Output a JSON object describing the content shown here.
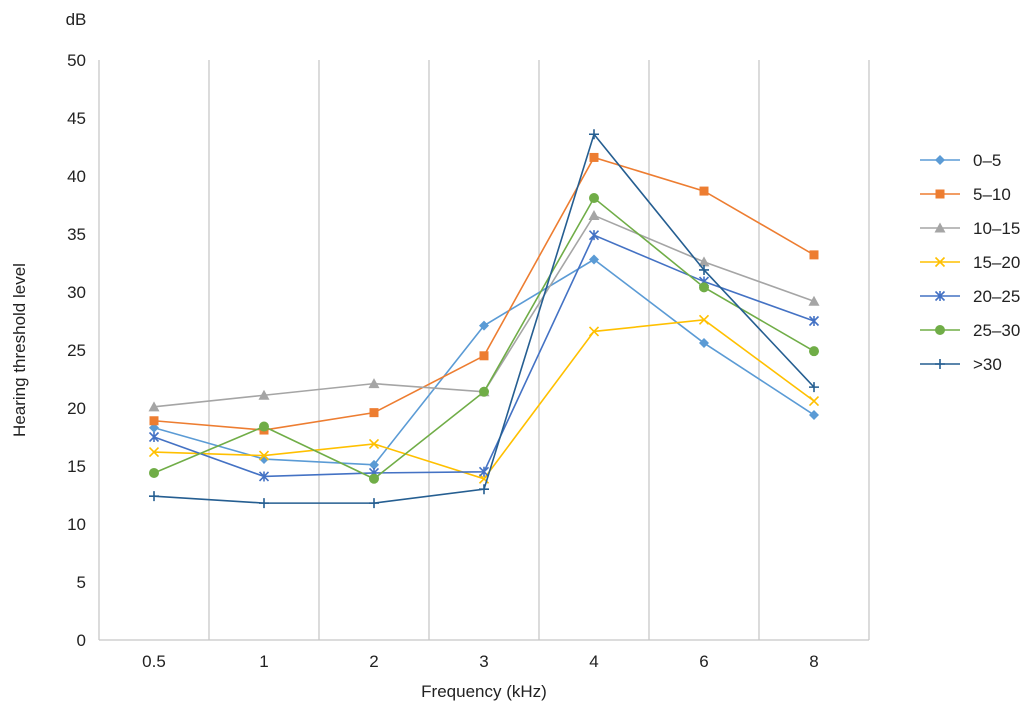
{
  "chart_data": {
    "type": "line",
    "unit_label": "dB",
    "xlabel": "Frequency (kHz)",
    "ylabel": "Hearing threshold level",
    "categories": [
      "0.5",
      "1",
      "2",
      "3",
      "4",
      "6",
      "8"
    ],
    "ylim": [
      0,
      50
    ],
    "yticks": [
      0,
      5,
      10,
      15,
      20,
      25,
      30,
      35,
      40,
      45,
      50
    ],
    "grid": "vertical",
    "legend_position": "right",
    "series": [
      {
        "name": "0–5",
        "color": "#5B9BD5",
        "marker": "diamond",
        "values": [
          18.3,
          15.6,
          15.1,
          27.1,
          32.8,
          25.6,
          19.4
        ]
      },
      {
        "name": "5–10",
        "color": "#ED7D31",
        "marker": "square",
        "values": [
          18.9,
          18.1,
          19.6,
          24.5,
          41.6,
          38.7,
          33.2
        ]
      },
      {
        "name": "10–15",
        "color": "#A5A5A5",
        "marker": "triangle",
        "values": [
          20.1,
          21.1,
          22.1,
          21.4,
          36.6,
          32.6,
          29.2
        ]
      },
      {
        "name": "15–20",
        "color": "#FFC000",
        "marker": "x",
        "values": [
          16.2,
          15.9,
          16.9,
          13.9,
          26.6,
          27.6,
          20.6
        ]
      },
      {
        "name": "20–25",
        "color": "#4472C4",
        "marker": "star",
        "values": [
          17.5,
          14.1,
          14.4,
          14.5,
          34.9,
          30.9,
          27.5
        ]
      },
      {
        "name": "25–30",
        "color": "#70AD47",
        "marker": "circle",
        "values": [
          14.4,
          18.4,
          13.9,
          21.4,
          38.1,
          30.4,
          24.9
        ]
      },
      {
        "name": ">30",
        "color": "#255E91",
        "marker": "plus",
        "values": [
          12.4,
          11.8,
          11.8,
          13.0,
          43.6,
          31.9,
          21.8
        ]
      }
    ]
  }
}
